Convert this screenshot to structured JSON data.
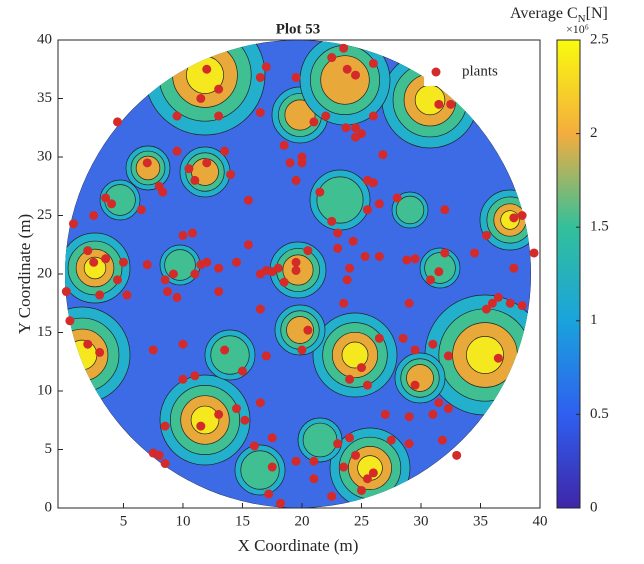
{
  "chart_data": {
    "type": "scatter",
    "title": "Plot 53",
    "x_label": "X Coordinate (m)",
    "y_label": "Y Coordinate (m)",
    "xlim": [
      -0.5,
      40
    ],
    "ylim": [
      0,
      40
    ],
    "xticks": [
      5,
      10,
      15,
      20,
      25,
      30,
      35,
      40
    ],
    "yticks": [
      0,
      5,
      10,
      15,
      20,
      25,
      30,
      35,
      40
    ],
    "legend": "northeast",
    "series": [
      {
        "name": "plants",
        "color": "#d42a2a",
        "x": [
          12,
          17,
          19.5,
          16.5,
          13,
          11.5,
          9.5,
          13,
          16.5,
          4.5,
          23.5,
          22.5,
          24.5,
          26,
          23.8,
          21,
          22,
          24.5,
          23.7,
          26,
          24.5,
          25,
          31.5,
          32.5,
          26.8,
          10.5,
          7,
          12,
          9.5,
          13.5,
          14,
          8,
          8.3,
          11,
          18.5,
          20,
          19,
          19.5,
          20,
          2.5,
          3.5,
          4,
          6.5,
          0.8,
          10,
          10.8,
          15.5,
          15.5,
          22.5,
          23,
          23,
          24.3,
          25.5,
          26.5,
          28,
          21.5,
          26,
          25.5,
          32,
          35.5,
          37.8,
          38.5,
          2,
          2.5,
          3.5,
          4.5,
          5,
          5.3,
          3,
          0.2,
          7,
          8.5,
          8.7,
          9.5,
          9.2,
          12,
          13,
          11.5,
          17,
          17.5,
          18,
          16.5,
          19.5,
          19.5,
          14.5,
          18.5,
          20.5,
          24,
          25.3,
          26.5,
          23.8,
          28.8,
          29.5,
          31.5,
          32,
          30.8,
          34.5,
          37.8,
          35.5,
          36,
          36.5,
          37.5,
          38.5,
          39.5,
          29,
          23.5,
          16.5,
          20.5,
          13,
          11,
          0.5,
          2,
          3,
          7.5,
          10,
          13.5,
          15,
          17,
          20,
          25,
          26.5,
          28.5,
          29.5,
          31,
          32.3,
          36.5,
          10,
          11,
          16.5,
          14.5,
          24,
          25.5,
          29.5,
          31.5,
          32.3,
          31,
          27,
          29,
          27.5,
          29,
          31.8,
          33,
          8.5,
          11.5,
          13,
          15.2,
          16,
          17.5,
          7.5,
          8,
          8.5,
          17.5,
          21,
          21,
          23.5,
          23,
          24.5,
          24,
          25,
          25.5,
          26,
          17.2,
          18.2,
          19.5,
          22.5
        ],
        "y": [
          37.5,
          37.7,
          36.8,
          36.8,
          35.8,
          35,
          33.5,
          33.5,
          33.8,
          33,
          39.3,
          38.5,
          37,
          38,
          37.5,
          33,
          33.5,
          31.7,
          32.5,
          33.5,
          32.5,
          32,
          34.5,
          34.5,
          30.2,
          29,
          29.5,
          29.5,
          30.5,
          30.5,
          28.5,
          27.5,
          27,
          28,
          31,
          29.5,
          29.5,
          28,
          30,
          25,
          26.5,
          26,
          25.5,
          24.3,
          23.3,
          23.5,
          26.3,
          22.5,
          24.5,
          23.5,
          22.2,
          22.8,
          25.5,
          26,
          26.5,
          27,
          27.8,
          28,
          25.5,
          23.3,
          24.8,
          25,
          22,
          21,
          21.3,
          19.5,
          21,
          18.2,
          18.2,
          18.5,
          20.8,
          19.5,
          18.5,
          18,
          20,
          21,
          20.5,
          20.8,
          20.3,
          20.2,
          20.5,
          20,
          21,
          20.3,
          21,
          19.3,
          22,
          20.5,
          21.5,
          21.5,
          19.5,
          21.2,
          21.3,
          20.2,
          21.8,
          19.5,
          21.8,
          20.5,
          17,
          17.5,
          18,
          17.5,
          17.3,
          21.8,
          17.5,
          17.5,
          17,
          15.2,
          18.5,
          20,
          16,
          14,
          13.3,
          13.5,
          14,
          13.5,
          11.7,
          13,
          13.5,
          12,
          14.5,
          14.5,
          13.5,
          14,
          13,
          12.8,
          11,
          11.3,
          9,
          8.5,
          11,
          10.5,
          10.5,
          9,
          8.5,
          8,
          8,
          7.8,
          5.8,
          5.5,
          5.8,
          4.5,
          7,
          7,
          8,
          7.5,
          5.3,
          6,
          4.7,
          4.5,
          3.8,
          3.5,
          4,
          2.5,
          3.5,
          5.5,
          4.5,
          6,
          1.5,
          2.5,
          3,
          1.2,
          0.4,
          4,
          1
        ]
      }
    ],
    "colorbar": {
      "label": "Average C",
      "label_sub": "N",
      "label_unit": "[N]",
      "exponent_label": "×10⁶",
      "clim": [
        0,
        2.5
      ],
      "ticks": [
        0,
        0.5,
        1,
        1.5,
        2,
        2.5
      ]
    }
  }
}
